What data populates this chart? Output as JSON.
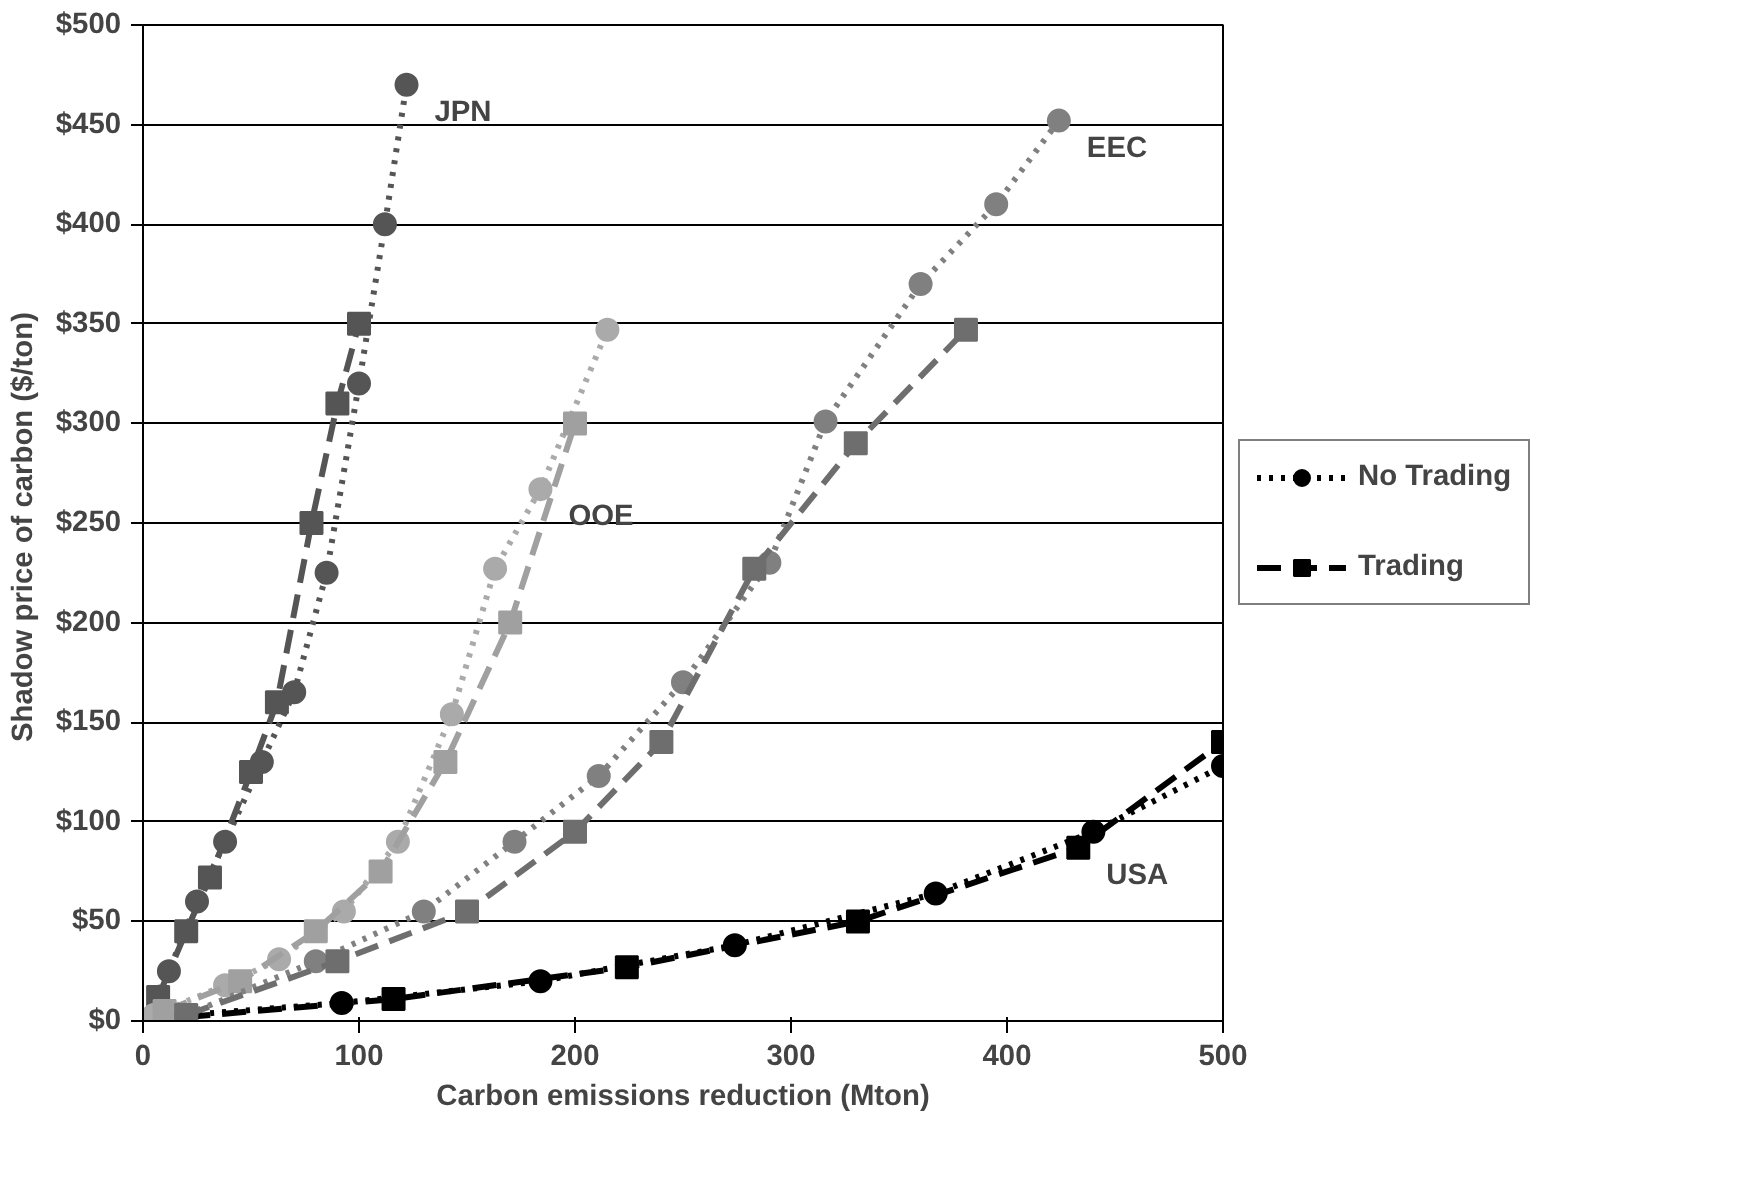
{
  "chart_data": {
    "type": "line",
    "xlabel": "Carbon emissions reduction (Mton)",
    "ylabel": "Shadow price of carbon  ($/ton)",
    "xlim": [
      0,
      500
    ],
    "xticks": [
      0,
      100,
      200,
      300,
      400,
      500
    ],
    "ylim": [
      0,
      500
    ],
    "yticks": [
      {
        "value": 0,
        "label": "$0"
      },
      {
        "value": 50,
        "label": "$50"
      },
      {
        "value": 100,
        "label": "$100"
      },
      {
        "value": 150,
        "label": "$150"
      },
      {
        "value": 200,
        "label": "$200"
      },
      {
        "value": 250,
        "label": "$250"
      },
      {
        "value": 300,
        "label": "$300"
      },
      {
        "value": 350,
        "label": "$350"
      },
      {
        "value": 400,
        "label": "$400"
      },
      {
        "value": 450,
        "label": "$450"
      },
      {
        "value": 500,
        "label": "$500"
      }
    ],
    "grid": "y",
    "legend": "right",
    "series": [
      {
        "name": "No Trading",
        "color": "#000000",
        "marker": "circle",
        "line_style": "dotted",
        "x": [
          20,
          92,
          184,
          274,
          367,
          440,
          500
        ],
        "values": [
          3,
          9,
          20,
          38,
          64,
          95,
          128
        ]
      },
      {
        "name": "Trading",
        "color": "#000000",
        "marker": "square",
        "line_style": "dashed",
        "x": [
          20,
          116,
          224,
          331,
          433,
          500
        ],
        "values": [
          2,
          11,
          27,
          50,
          87,
          140
        ]
      },
      {
        "color": "#555555",
        "marker": "circle",
        "line_style": "dotted",
        "x": [
          0,
          12,
          25,
          38,
          55,
          70,
          85,
          100,
          112,
          122
        ],
        "values": [
          0,
          25,
          60,
          90,
          130,
          165,
          225,
          320,
          400,
          470
        ]
      },
      {
        "color": "#555555",
        "marker": "square",
        "line_style": "dashed",
        "x": [
          0,
          7,
          20,
          31,
          50,
          62,
          78,
          90,
          100
        ],
        "values": [
          0,
          12,
          45,
          72,
          125,
          160,
          250,
          310,
          350
        ]
      },
      {
        "color": "#aaaaaa",
        "marker": "circle",
        "line_style": "dotted",
        "x": [
          5,
          38,
          63,
          93,
          118,
          143,
          163,
          184,
          215
        ],
        "values": [
          3,
          18,
          31,
          55,
          90,
          154,
          227,
          267,
          347
        ]
      },
      {
        "color": "#a0a0a0",
        "marker": "square",
        "line_style": "dashed",
        "x": [
          10,
          45,
          80,
          110,
          140,
          170,
          200
        ],
        "values": [
          5,
          20,
          45,
          75,
          130,
          200,
          300
        ]
      },
      {
        "color": "#808080",
        "marker": "circle",
        "line_style": "dotted",
        "x": [
          20,
          80,
          130,
          172,
          211,
          250,
          290,
          316,
          360,
          395,
          424
        ],
        "values": [
          3,
          30,
          55,
          90,
          123,
          170,
          230,
          301,
          370,
          410,
          452
        ]
      },
      {
        "color": "#6e6e6e",
        "marker": "square",
        "line_style": "dashed",
        "x": [
          20,
          90,
          150,
          200,
          240,
          283,
          330,
          381
        ],
        "values": [
          3,
          30,
          55,
          95,
          140,
          227,
          290,
          347
        ]
      }
    ],
    "annotations": [
      {
        "text": "JPN",
        "x": 122,
        "y": 470
      },
      {
        "text": "EEC",
        "x": 424,
        "y": 452
      },
      {
        "text": "OOE",
        "x": 184,
        "y": 267
      },
      {
        "text": "USA",
        "x": 433,
        "y": 87
      }
    ]
  }
}
